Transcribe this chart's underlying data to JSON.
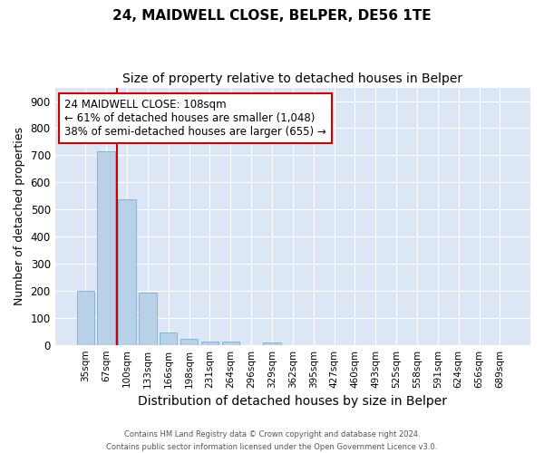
{
  "title": "24, MAIDWELL CLOSE, BELPER, DE56 1TE",
  "subtitle": "Size of property relative to detached houses in Belper",
  "xlabel": "Distribution of detached houses by size in Belper",
  "ylabel": "Number of detached properties",
  "footer_line1": "Contains HM Land Registry data © Crown copyright and database right 2024.",
  "footer_line2": "Contains public sector information licensed under the Open Government Licence v3.0.",
  "categories": [
    "35sqm",
    "67sqm",
    "100sqm",
    "133sqm",
    "166sqm",
    "198sqm",
    "231sqm",
    "264sqm",
    "296sqm",
    "329sqm",
    "362sqm",
    "395sqm",
    "427sqm",
    "460sqm",
    "493sqm",
    "525sqm",
    "558sqm",
    "591sqm",
    "624sqm",
    "656sqm",
    "689sqm"
  ],
  "values": [
    200,
    716,
    537,
    192,
    47,
    22,
    13,
    11,
    0,
    10,
    0,
    0,
    0,
    0,
    0,
    0,
    0,
    0,
    0,
    0,
    0
  ],
  "bar_color": "#b8d0e8",
  "bar_edge_color": "#7aafc8",
  "vline_x": 1.5,
  "vline_color": "#cc0000",
  "annotation_text": "24 MAIDWELL CLOSE: 108sqm\n← 61% of detached houses are smaller (1,048)\n38% of semi-detached houses are larger (655) →",
  "annotation_box_color": "#ffffff",
  "annotation_box_edge": "#cc0000",
  "ylim": [
    0,
    950
  ],
  "yticks": [
    0,
    100,
    200,
    300,
    400,
    500,
    600,
    700,
    800,
    900
  ],
  "plot_bg_color": "#dce6f5",
  "grid_color": "#ffffff",
  "title_fontsize": 11,
  "subtitle_fontsize": 10,
  "ylabel_fontsize": 9,
  "xlabel_fontsize": 10
}
